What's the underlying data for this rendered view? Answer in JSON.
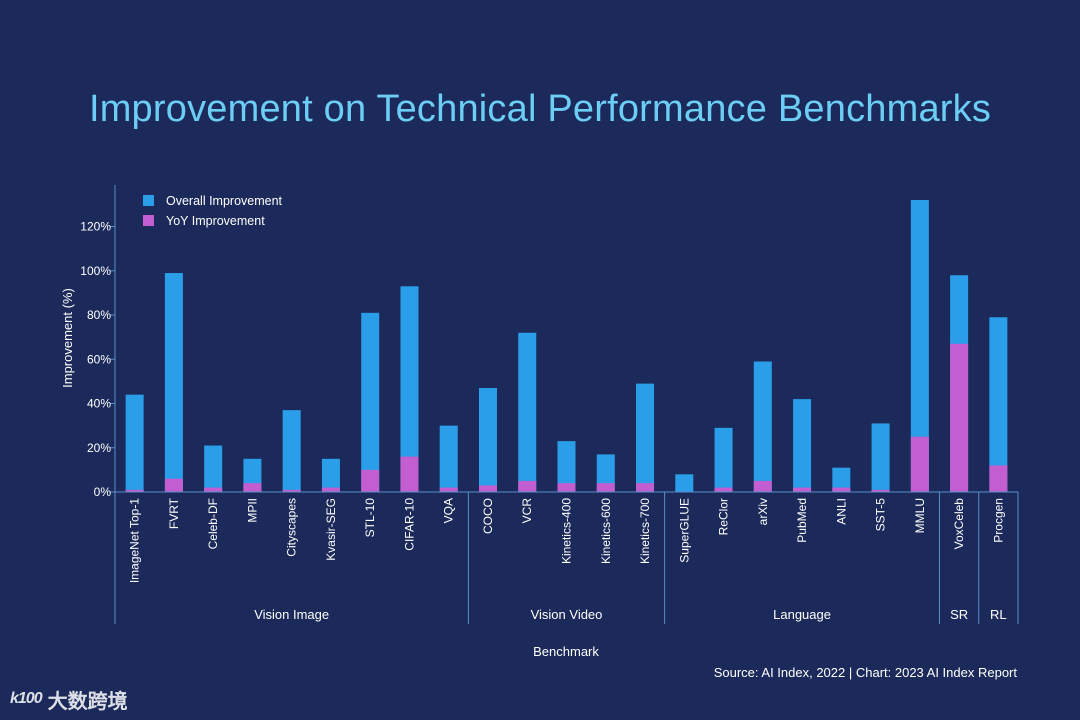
{
  "chart_data": {
    "type": "bar",
    "title": "Improvement on Technical Performance Benchmarks",
    "xlabel": "Benchmark",
    "ylabel": "Improvement (%)",
    "ylim": [
      0,
      135
    ],
    "yticks": [
      0,
      20,
      40,
      60,
      80,
      100,
      120
    ],
    "ytick_suffix": "%",
    "legend_position": "top-left",
    "stacked": false,
    "grid": false,
    "categories": [
      "ImageNet Top-1",
      "FVRT",
      "Celeb-DF",
      "MPII",
      "Cityscapes",
      "Kvasir-SEG",
      "STL-10",
      "CIFAR-10",
      "VQA",
      "COCO",
      "VCR",
      "Kinetics-400",
      "Kinetics-600",
      "Kinetics-700",
      "SuperGLUE",
      "ReClor",
      "arXiv",
      "PubMed",
      "ANLI",
      "SST-5",
      "MMLU",
      "VoxCeleb",
      "Procgen"
    ],
    "series": [
      {
        "name": "Overall Improvement",
        "color": "#2a9ee8",
        "values": [
          44,
          99,
          21,
          15,
          37,
          15,
          81,
          93,
          30,
          47,
          72,
          23,
          17,
          49,
          8,
          29,
          59,
          42,
          11,
          31,
          132,
          98,
          79
        ]
      },
      {
        "name": "YoY Improvement",
        "color": "#c25ecf",
        "values": [
          1,
          6,
          2,
          4,
          1,
          2,
          10,
          16,
          2,
          3,
          5,
          4,
          4,
          4,
          0,
          2,
          5,
          2,
          2,
          1,
          25,
          67,
          12
        ]
      }
    ],
    "groups": [
      {
        "label": "Vision Image",
        "start": 0,
        "end": 8
      },
      {
        "label": "Vision Video",
        "start": 9,
        "end": 13
      },
      {
        "label": "Language",
        "start": 14,
        "end": 20
      },
      {
        "label": "SR",
        "start": 21,
        "end": 21
      },
      {
        "label": "RL",
        "start": 22,
        "end": 22
      }
    ]
  },
  "source": "Source: AI Index, 2022 | Chart: 2023 AI Index Report",
  "watermark": {
    "logo": "k100",
    "text": "大数跨境"
  },
  "colors": {
    "background": "#1b2a5a",
    "title": "#6ccdf5",
    "text": "#ffffff",
    "axis": "#5a8ec7"
  }
}
